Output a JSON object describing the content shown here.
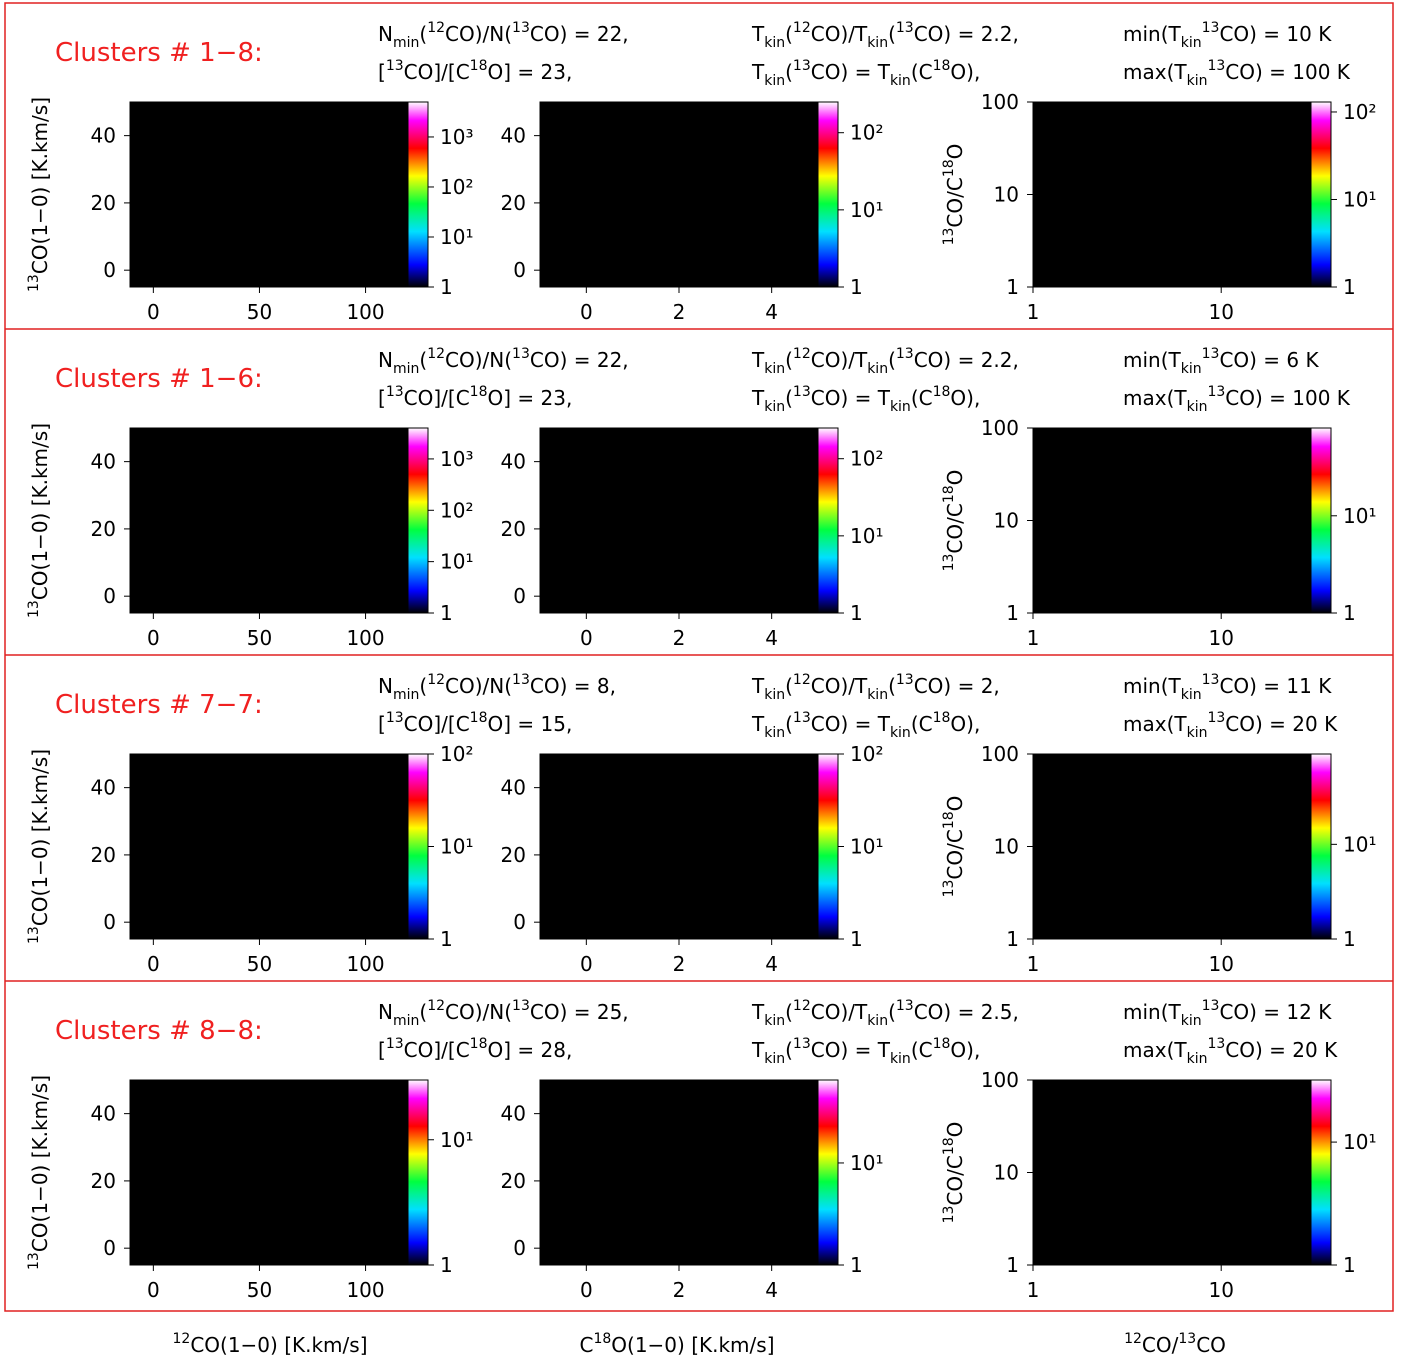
{
  "rows": [
    {
      "title": "Clusters # 1−8:",
      "params": [
        [
          {
            "t": "N"
          },
          {
            "t": "min",
            "s": "sub"
          },
          {
            "t": "("
          },
          {
            "t": "12",
            "s": "sup"
          },
          {
            "t": "CO)/N("
          },
          {
            "t": "13",
            "s": "sup"
          },
          {
            "t": "CO) = 22,"
          }
        ],
        [
          {
            "t": "T"
          },
          {
            "t": "kin",
            "s": "sub"
          },
          {
            "t": "("
          },
          {
            "t": "12",
            "s": "sup"
          },
          {
            "t": "CO)/T"
          },
          {
            "t": "kin",
            "s": "sub"
          },
          {
            "t": "("
          },
          {
            "t": "13",
            "s": "sup"
          },
          {
            "t": "CO) = 2.2,"
          }
        ],
        [
          {
            "t": "min(T"
          },
          {
            "t": "kin",
            "s": "sub"
          },
          {
            "t": "13",
            "s": "sup"
          },
          {
            "t": "CO) = 10 K"
          }
        ],
        [
          {
            "t": "["
          },
          {
            "t": "13",
            "s": "sup"
          },
          {
            "t": "CO]/[C"
          },
          {
            "t": "18",
            "s": "sup"
          },
          {
            "t": "O] = 23,"
          }
        ],
        [
          {
            "t": "T"
          },
          {
            "t": "kin",
            "s": "sub"
          },
          {
            "t": "("
          },
          {
            "t": "13",
            "s": "sup"
          },
          {
            "t": "CO) = T"
          },
          {
            "t": "kin",
            "s": "sub"
          },
          {
            "t": "(C"
          },
          {
            "t": "18",
            "s": "sup"
          },
          {
            "t": "O),"
          }
        ],
        [
          {
            "t": "max(T"
          },
          {
            "t": "kin",
            "s": "sub"
          },
          {
            "t": "13",
            "s": "sup"
          },
          {
            "t": "CO) = 100 K"
          }
        ]
      ],
      "panels": [
        {
          "type": "heatmap",
          "xlim": [
            -11,
            120
          ],
          "xticks": [
            0,
            50,
            100
          ],
          "ylim": [
            -5,
            50
          ],
          "yticks": [
            0,
            20,
            40
          ],
          "clim": [
            1,
            5000
          ],
          "colorbar_log": true,
          "cticks": [
            1,
            {
              "value": 10,
              "label": "10¹"
            },
            {
              "value": 100,
              "label": "10²"
            },
            {
              "value": 1000,
              "label": "10³"
            }
          ]
        },
        {
          "type": "heatmap",
          "xlim": [
            -1,
            5
          ],
          "xticks": [
            0,
            2,
            4
          ],
          "ylim": [
            -5,
            50
          ],
          "yticks": [
            0,
            20,
            40
          ],
          "clim": [
            1,
            250
          ],
          "colorbar_log": true,
          "cticks": [
            1,
            {
              "value": 10,
              "label": "10¹"
            },
            {
              "value": 100,
              "label": "10²"
            }
          ]
        },
        {
          "type": "heatmap",
          "xlim": [
            1,
            30
          ],
          "xticks": [
            1,
            10
          ],
          "xlog": true,
          "ylim": [
            1,
            100
          ],
          "yticks": [
            1,
            10,
            100
          ],
          "ylog": true,
          "clim": [
            1,
            130
          ],
          "colorbar_log": true,
          "cticks": [
            1,
            {
              "value": 10,
              "label": "10¹"
            },
            {
              "value": 100,
              "label": "10²"
            }
          ]
        }
      ]
    },
    {
      "title": "Clusters # 1−6:",
      "params": [
        [
          {
            "t": "N"
          },
          {
            "t": "min",
            "s": "sub"
          },
          {
            "t": "("
          },
          {
            "t": "12",
            "s": "sup"
          },
          {
            "t": "CO)/N("
          },
          {
            "t": "13",
            "s": "sup"
          },
          {
            "t": "CO) = 22,"
          }
        ],
        [
          {
            "t": "T"
          },
          {
            "t": "kin",
            "s": "sub"
          },
          {
            "t": "("
          },
          {
            "t": "12",
            "s": "sup"
          },
          {
            "t": "CO)/T"
          },
          {
            "t": "kin",
            "s": "sub"
          },
          {
            "t": "("
          },
          {
            "t": "13",
            "s": "sup"
          },
          {
            "t": "CO) = 2.2,"
          }
        ],
        [
          {
            "t": "min(T"
          },
          {
            "t": "kin",
            "s": "sub"
          },
          {
            "t": "13",
            "s": "sup"
          },
          {
            "t": "CO) = 6 K"
          }
        ],
        [
          {
            "t": "["
          },
          {
            "t": "13",
            "s": "sup"
          },
          {
            "t": "CO]/[C"
          },
          {
            "t": "18",
            "s": "sup"
          },
          {
            "t": "O] = 23,"
          }
        ],
        [
          {
            "t": "T"
          },
          {
            "t": "kin",
            "s": "sub"
          },
          {
            "t": "("
          },
          {
            "t": "13",
            "s": "sup"
          },
          {
            "t": "CO) = T"
          },
          {
            "t": "kin",
            "s": "sub"
          },
          {
            "t": "(C"
          },
          {
            "t": "18",
            "s": "sup"
          },
          {
            "t": "O),"
          }
        ],
        [
          {
            "t": "max(T"
          },
          {
            "t": "kin",
            "s": "sub"
          },
          {
            "t": "13",
            "s": "sup"
          },
          {
            "t": "CO) = 100 K"
          }
        ]
      ],
      "panels": [
        {
          "type": "heatmap",
          "xlim": [
            -11,
            120
          ],
          "xticks": [
            0,
            50,
            100
          ],
          "ylim": [
            -5,
            50
          ],
          "yticks": [
            0,
            20,
            40
          ],
          "clim": [
            1,
            4000
          ],
          "colorbar_log": true,
          "cticks": [
            1,
            {
              "value": 10,
              "label": "10¹"
            },
            {
              "value": 100,
              "label": "10²"
            },
            {
              "value": 1000,
              "label": "10³"
            }
          ]
        },
        {
          "type": "heatmap",
          "xlim": [
            -1,
            5
          ],
          "xticks": [
            0,
            2,
            4
          ],
          "ylim": [
            -5,
            50
          ],
          "yticks": [
            0,
            20,
            40
          ],
          "clim": [
            1,
            250
          ],
          "colorbar_log": true,
          "cticks": [
            1,
            {
              "value": 10,
              "label": "10¹"
            },
            {
              "value": 100,
              "label": "10²"
            }
          ]
        },
        {
          "type": "heatmap",
          "xlim": [
            1,
            30
          ],
          "xticks": [
            1,
            10
          ],
          "xlog": true,
          "ylim": [
            1,
            100
          ],
          "yticks": [
            1,
            10,
            100
          ],
          "ylog": true,
          "clim": [
            1,
            80
          ],
          "colorbar_log": true,
          "cticks": [
            1,
            {
              "value": 10,
              "label": "10¹"
            }
          ]
        }
      ]
    },
    {
      "title": "Clusters # 7−7:",
      "params": [
        [
          {
            "t": "N"
          },
          {
            "t": "min",
            "s": "sub"
          },
          {
            "t": "("
          },
          {
            "t": "12",
            "s": "sup"
          },
          {
            "t": "CO)/N("
          },
          {
            "t": "13",
            "s": "sup"
          },
          {
            "t": "CO) = 8,"
          }
        ],
        [
          {
            "t": "T"
          },
          {
            "t": "kin",
            "s": "sub"
          },
          {
            "t": "("
          },
          {
            "t": "12",
            "s": "sup"
          },
          {
            "t": "CO)/T"
          },
          {
            "t": "kin",
            "s": "sub"
          },
          {
            "t": "("
          },
          {
            "t": "13",
            "s": "sup"
          },
          {
            "t": "CO) = 2,"
          }
        ],
        [
          {
            "t": "min(T"
          },
          {
            "t": "kin",
            "s": "sub"
          },
          {
            "t": "13",
            "s": "sup"
          },
          {
            "t": "CO) = 11 K"
          }
        ],
        [
          {
            "t": "["
          },
          {
            "t": "13",
            "s": "sup"
          },
          {
            "t": "CO]/[C"
          },
          {
            "t": "18",
            "s": "sup"
          },
          {
            "t": "O] = 15,"
          }
        ],
        [
          {
            "t": "T"
          },
          {
            "t": "kin",
            "s": "sub"
          },
          {
            "t": "("
          },
          {
            "t": "13",
            "s": "sup"
          },
          {
            "t": "CO) = T"
          },
          {
            "t": "kin",
            "s": "sub"
          },
          {
            "t": "(C"
          },
          {
            "t": "18",
            "s": "sup"
          },
          {
            "t": "O),"
          }
        ],
        [
          {
            "t": "max(T"
          },
          {
            "t": "kin",
            "s": "sub"
          },
          {
            "t": "13",
            "s": "sup"
          },
          {
            "t": "CO) = 20 K"
          }
        ]
      ],
      "panels": [
        {
          "type": "heatmap",
          "xlim": [
            -11,
            120
          ],
          "xticks": [
            0,
            50,
            100
          ],
          "ylim": [
            -5,
            50
          ],
          "yticks": [
            0,
            20,
            40
          ],
          "clim": [
            1,
            100
          ],
          "colorbar_log": true,
          "cticks": [
            1,
            {
              "value": 10,
              "label": "10¹"
            },
            {
              "value": 100,
              "label": "10²"
            }
          ]
        },
        {
          "type": "heatmap",
          "xlim": [
            -1,
            5
          ],
          "xticks": [
            0,
            2,
            4
          ],
          "ylim": [
            -5,
            50
          ],
          "yticks": [
            0,
            20,
            40
          ],
          "clim": [
            1,
            100
          ],
          "colorbar_log": true,
          "cticks": [
            1,
            {
              "value": 10,
              "label": "10¹"
            },
            {
              "value": 100,
              "label": "10²"
            }
          ]
        },
        {
          "type": "heatmap",
          "xlim": [
            1,
            30
          ],
          "xticks": [
            1,
            10
          ],
          "xlog": true,
          "ylim": [
            1,
            100
          ],
          "yticks": [
            1,
            10,
            100
          ],
          "ylog": true,
          "clim": [
            1,
            90
          ],
          "colorbar_log": true,
          "cticks": [
            1,
            {
              "value": 10,
              "label": "10¹"
            }
          ]
        }
      ]
    },
    {
      "title": "Clusters # 8−8:",
      "params": [
        [
          {
            "t": "N"
          },
          {
            "t": "min",
            "s": "sub"
          },
          {
            "t": "("
          },
          {
            "t": "12",
            "s": "sup"
          },
          {
            "t": "CO)/N("
          },
          {
            "t": "13",
            "s": "sup"
          },
          {
            "t": "CO) = 25,"
          }
        ],
        [
          {
            "t": "T"
          },
          {
            "t": "kin",
            "s": "sub"
          },
          {
            "t": "("
          },
          {
            "t": "12",
            "s": "sup"
          },
          {
            "t": "CO)/T"
          },
          {
            "t": "kin",
            "s": "sub"
          },
          {
            "t": "("
          },
          {
            "t": "13",
            "s": "sup"
          },
          {
            "t": "CO) = 2.5,"
          }
        ],
        [
          {
            "t": "min(T"
          },
          {
            "t": "kin",
            "s": "sub"
          },
          {
            "t": "13",
            "s": "sup"
          },
          {
            "t": "CO) = 12 K"
          }
        ],
        [
          {
            "t": "["
          },
          {
            "t": "13",
            "s": "sup"
          },
          {
            "t": "CO]/[C"
          },
          {
            "t": "18",
            "s": "sup"
          },
          {
            "t": "O] = 28,"
          }
        ],
        [
          {
            "t": "T"
          },
          {
            "t": "kin",
            "s": "sub"
          },
          {
            "t": "("
          },
          {
            "t": "13",
            "s": "sup"
          },
          {
            "t": "CO) = T"
          },
          {
            "t": "kin",
            "s": "sub"
          },
          {
            "t": "(C"
          },
          {
            "t": "18",
            "s": "sup"
          },
          {
            "t": "O),"
          }
        ],
        [
          {
            "t": "max(T"
          },
          {
            "t": "kin",
            "s": "sub"
          },
          {
            "t": "13",
            "s": "sup"
          },
          {
            "t": "CO) = 20 K"
          }
        ]
      ],
      "panels": [
        {
          "type": "heatmap",
          "xlim": [
            -11,
            120
          ],
          "xticks": [
            0,
            50,
            100
          ],
          "ylim": [
            -5,
            50
          ],
          "yticks": [
            0,
            20,
            40
          ],
          "clim": [
            1,
            30
          ],
          "colorbar_log": true,
          "cticks": [
            1,
            {
              "value": 10,
              "label": "10¹"
            }
          ]
        },
        {
          "type": "heatmap",
          "xlim": [
            -1,
            5
          ],
          "xticks": [
            0,
            2,
            4
          ],
          "ylim": [
            -5,
            50
          ],
          "yticks": [
            0,
            20,
            40
          ],
          "clim": [
            1,
            65
          ],
          "colorbar_log": true,
          "cticks": [
            1,
            {
              "value": 10,
              "label": "10¹"
            }
          ]
        },
        {
          "type": "heatmap",
          "xlim": [
            1,
            30
          ],
          "xticks": [
            1,
            10
          ],
          "xlog": true,
          "ylim": [
            1,
            100
          ],
          "yticks": [
            1,
            10,
            100
          ],
          "ylog": true,
          "clim": [
            1,
            32
          ],
          "colorbar_log": true,
          "cticks": [
            1,
            {
              "value": 10,
              "label": "10¹"
            }
          ]
        }
      ]
    }
  ],
  "ylabels": [
    [
      {
        "t": "13",
        "s": "sup"
      },
      {
        "t": "CO(1−0) [K.km/s]"
      }
    ],
    [
      {
        "t": "13",
        "s": "sup"
      },
      {
        "t": "CO/C"
      },
      {
        "t": "18",
        "s": "sup"
      },
      {
        "t": "O"
      }
    ]
  ],
  "xlabels": [
    [
      {
        "t": "12",
        "s": "sup"
      },
      {
        "t": "CO(1−0) [K.km/s]"
      }
    ],
    [
      {
        "t": "C"
      },
      {
        "t": "18",
        "s": "sup"
      },
      {
        "t": "O(1−0) [K.km/s]"
      }
    ],
    [
      {
        "t": "12",
        "s": "sup"
      },
      {
        "t": "CO/"
      },
      {
        "t": "13",
        "s": "sup"
      },
      {
        "t": "CO"
      }
    ]
  ],
  "frame_color": "#e02020",
  "title_color": "#f02020"
}
